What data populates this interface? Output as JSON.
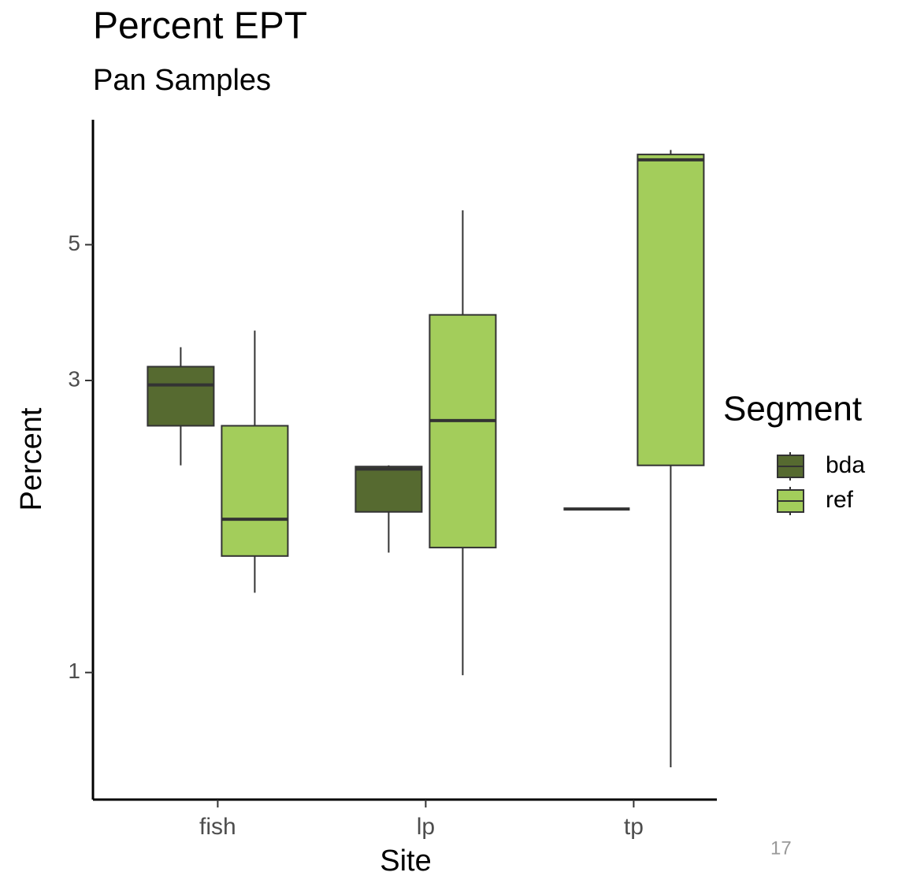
{
  "chart_data": {
    "type": "box",
    "title": "Percent EPT",
    "subtitle": "Pan Samples",
    "x_label": "Site",
    "y_label": "Percent",
    "legend_title": "Segment",
    "legend_position": "right",
    "log_scale": true,
    "ylim": [
      0.62,
      8.0
    ],
    "yticks": [
      1,
      3,
      5
    ],
    "categories": [
      "fish",
      "lp",
      "tp"
    ],
    "series": [
      {
        "name": "bda",
        "color": "#566a30",
        "values": [
          {
            "min": 2.18,
            "q1": 2.53,
            "median": 2.95,
            "q3": 3.16,
            "max": 3.4
          },
          {
            "min": 1.57,
            "q1": 1.83,
            "median": 2.15,
            "q3": 2.17,
            "max": 2.18
          },
          {
            "min": 1.85,
            "q1": 1.85,
            "median": 1.85,
            "q3": 1.85,
            "max": 1.85
          }
        ]
      },
      {
        "name": "ref",
        "color": "#a3cd5b",
        "values": [
          {
            "min": 1.35,
            "q1": 1.55,
            "median": 1.78,
            "q3": 2.53,
            "max": 3.62
          },
          {
            "min": 0.99,
            "q1": 1.6,
            "median": 2.58,
            "q3": 3.84,
            "max": 5.69
          },
          {
            "min": 0.7,
            "q1": 2.18,
            "median": 6.88,
            "q3": 7.02,
            "max": 7.14
          }
        ]
      }
    ],
    "page_number": "17"
  }
}
